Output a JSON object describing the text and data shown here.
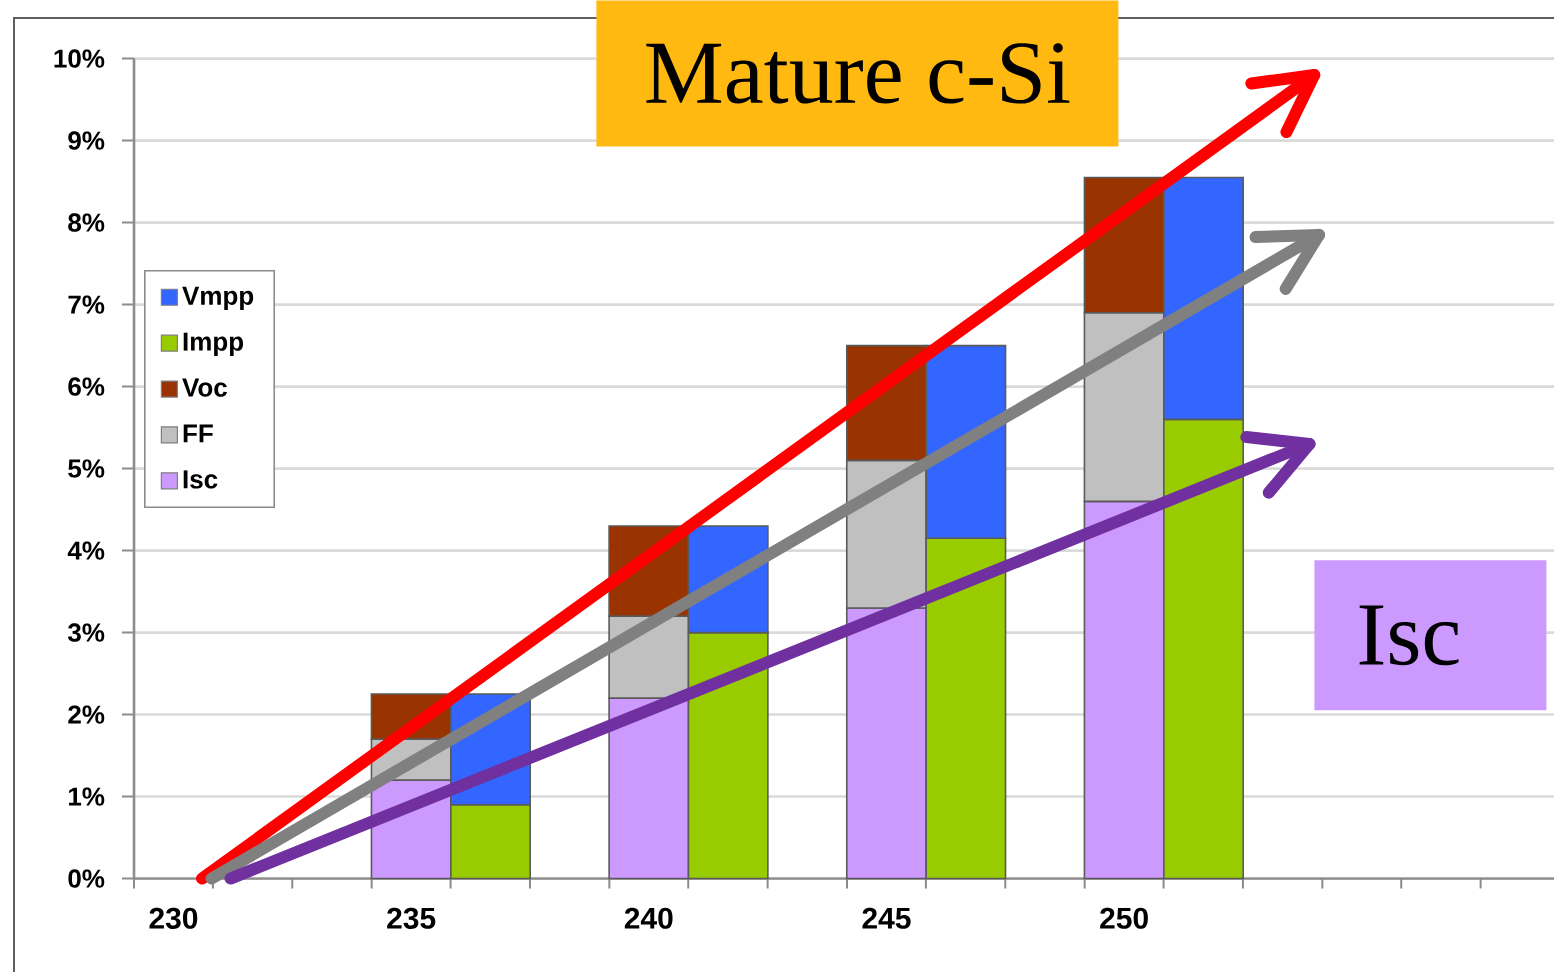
{
  "chart_data": {
    "type": "bar",
    "stacked": true,
    "x": [
      235,
      236.67,
      240,
      241.67,
      245,
      246.67,
      250,
      251.67
    ],
    "series": [
      {
        "name": "Isc",
        "color": "#cc99ff",
        "values": [
          1.2,
          null,
          2.2,
          null,
          3.3,
          null,
          4.6,
          null
        ]
      },
      {
        "name": "FF",
        "color": "#c0c0c0",
        "values": [
          0.5,
          null,
          1.0,
          null,
          1.8,
          null,
          2.3,
          null
        ]
      },
      {
        "name": "Voc",
        "color": "#993300",
        "values": [
          0.55,
          null,
          1.1,
          null,
          1.4,
          null,
          1.65,
          null
        ]
      },
      {
        "name": "Impp",
        "color": "#99cc00",
        "values": [
          null,
          0.9,
          null,
          3.0,
          null,
          4.15,
          null,
          5.6
        ]
      },
      {
        "name": "Vmpp",
        "color": "#3366ff",
        "values": [
          null,
          1.35,
          null,
          1.3,
          null,
          2.35,
          null,
          2.95
        ]
      },
      {
        "type": "line",
        "color": "#ff0000",
        "x": [
          230.6,
          254.0
        ],
        "values": [
          0,
          9.8
        ]
      },
      {
        "type": "line",
        "color": "#808080",
        "x": [
          230.8,
          254.1
        ],
        "values": [
          0,
          7.85
        ]
      },
      {
        "type": "line",
        "color": "#7030a0",
        "x": [
          231.2,
          253.9
        ],
        "values": [
          0,
          5.3
        ]
      }
    ],
    "xlim": [
      229.17,
      259.17
    ],
    "xticks": [
      {
        "value": 229.17,
        "label": null
      },
      230,
      {
        "value": 230.83,
        "label": null
      },
      {
        "value": 232.5,
        "label": null
      },
      {
        "value": 234.17,
        "label": null
      },
      235,
      {
        "value": 235.83,
        "label": null
      },
      {
        "value": 237.5,
        "label": null
      },
      {
        "value": 239.17,
        "label": null
      },
      240,
      {
        "value": 240.83,
        "label": null
      },
      {
        "value": 242.5,
        "label": null
      },
      {
        "value": 244.17,
        "label": null
      },
      245,
      {
        "value": 245.83,
        "label": null
      },
      {
        "value": 247.5,
        "label": null
      },
      {
        "value": 249.17,
        "label": null
      },
      250,
      {
        "value": 250.83,
        "label": null
      },
      {
        "value": 252.5,
        "label": null
      },
      {
        "value": 254.17,
        "label": null
      },
      {
        "value": 255.83,
        "label": null
      },
      {
        "value": 257.5,
        "label": null
      },
      {
        "value": 259.17,
        "label": null
      }
    ],
    "ylim": [
      0,
      10
    ],
    "yticks": [
      {
        "value": 0,
        "label": "0%"
      },
      {
        "value": 1,
        "label": "1%"
      },
      {
        "value": 2,
        "label": "2%"
      },
      {
        "value": 3,
        "label": "3%"
      },
      {
        "value": 4,
        "label": "4%"
      },
      {
        "value": 5,
        "label": "5%"
      },
      {
        "value": 6,
        "label": "6%"
      },
      {
        "value": 7,
        "label": "7%"
      },
      {
        "value": 8,
        "label": "8%"
      },
      {
        "value": 9,
        "label": "9%"
      },
      {
        "value": 10,
        "label": "10%"
      }
    ],
    "grid": "y",
    "legend": "left",
    "annotations": [
      "Mature c-Si",
      "Isc"
    ]
  }
}
